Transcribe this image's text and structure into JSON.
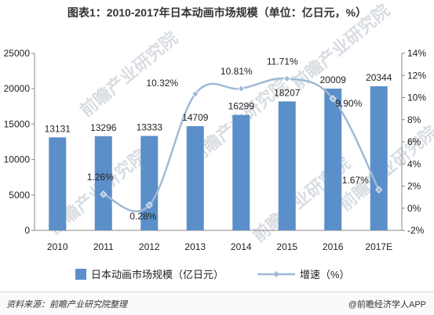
{
  "title": "图表1：2010-2017年日本动画市场规模（单位：亿日元，%）",
  "source": "资料来源：前瞻产业研究院整理",
  "brand": "@前瞻经济学人APP",
  "watermark": "前瞻产业研究院",
  "colors": {
    "bar": "#5b8fc9",
    "line": "#9fbad6",
    "point": "#9fbad6"
  },
  "chart_data": {
    "type": "bar",
    "categories": [
      "2010",
      "2011",
      "2012",
      "2013",
      "2014",
      "2015",
      "2016",
      "2017E"
    ],
    "series": [
      {
        "name": "日本动画市场规模（亿日元）",
        "type": "bar",
        "axis": "left",
        "values": [
          13131,
          13296,
          13333,
          14709,
          16299,
          18207,
          20009,
          20344
        ],
        "labels": [
          "13131",
          "13296",
          "13333",
          "14709",
          "16299",
          "18207",
          "20009",
          "20344"
        ]
      },
      {
        "name": "增速（%）",
        "type": "line",
        "axis": "right",
        "values": [
          null,
          1.26,
          0.28,
          10.32,
          10.81,
          11.71,
          9.9,
          1.67
        ],
        "labels": [
          "",
          "1.26%",
          "0.28%",
          "10.32%",
          "10.81%",
          "11.71%",
          "9.90%",
          "1.67%"
        ]
      }
    ],
    "ylim_left": [
      0,
      25000
    ],
    "yticks_left": [
      "0",
      "5000",
      "10000",
      "15000",
      "20000",
      "25000"
    ],
    "ylim_right": [
      -2,
      14
    ],
    "yticks_right": [
      "-2%",
      "0%",
      "2%",
      "4%",
      "6%",
      "8%",
      "10%",
      "12%",
      "14%"
    ],
    "legend_position": "bottom",
    "grid": false
  }
}
